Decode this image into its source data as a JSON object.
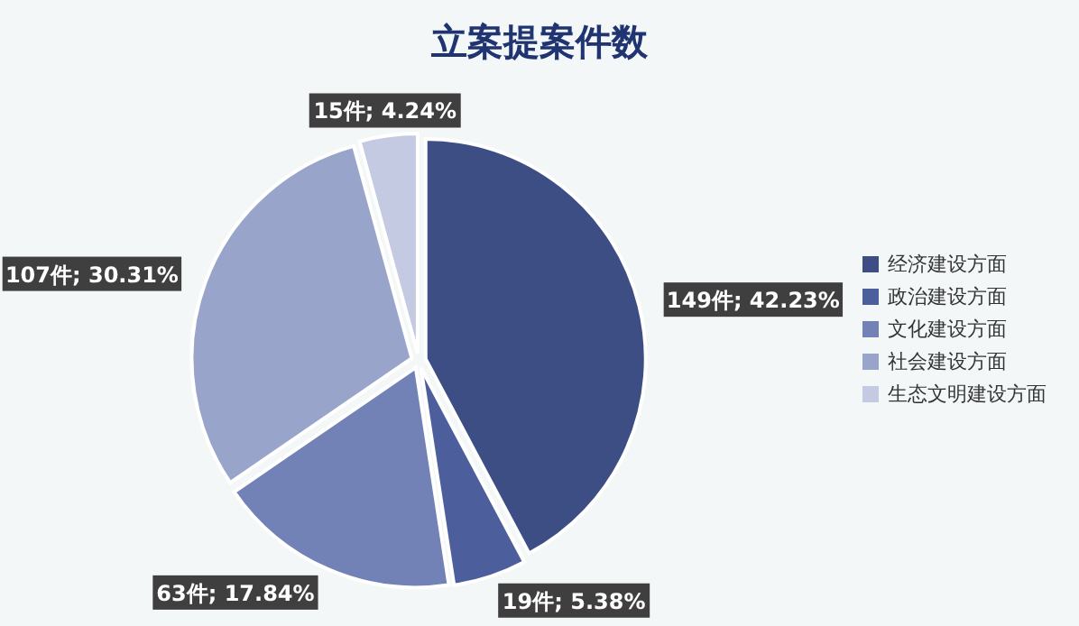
{
  "chart_data": {
    "type": "pie",
    "title": "立案提案件数",
    "categories": [
      "经济建设方面",
      "政治建设方面",
      "文化建设方面",
      "社会建设方面",
      "生态文明建设方面"
    ],
    "values": [
      149,
      19,
      63,
      107,
      15
    ],
    "value_labels": [
      "149件; 42.23%",
      "19件; 5.38%",
      "63件; 17.84%",
      "107件; 30.31%",
      "15件; 4.24%"
    ],
    "colors": [
      "#3c4e84",
      "#4c5f9c",
      "#7282b6",
      "#98a4ca",
      "#c3cae2"
    ],
    "legend": "right"
  }
}
